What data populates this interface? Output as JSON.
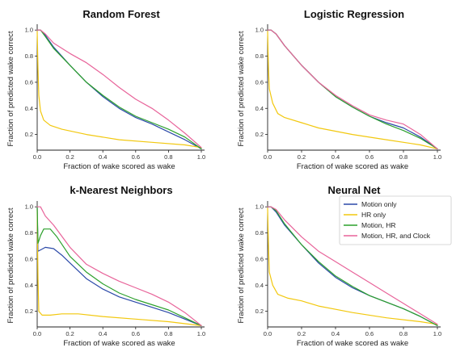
{
  "chart_data": [
    {
      "type": "line",
      "title": "Random Forest",
      "xlabel": "Fraction of wake scored as wake",
      "ylabel": "Fraction of predicted wake correct",
      "xlim": [
        0,
        1
      ],
      "ylim": [
        0.08,
        1.02
      ],
      "x_ticks": [
        "0.0",
        "0.2",
        "0.4",
        "0.6",
        "0.8",
        "1.0"
      ],
      "y_ticks": [
        "0.2",
        "0.4",
        "0.6",
        "0.8",
        "1.0"
      ],
      "grid": false,
      "series": [
        {
          "key": "motion",
          "points": [
            [
              0,
              1
            ],
            [
              0.02,
              1
            ],
            [
              0.05,
              0.96
            ],
            [
              0.1,
              0.87
            ],
            [
              0.2,
              0.73
            ],
            [
              0.3,
              0.6
            ],
            [
              0.4,
              0.49
            ],
            [
              0.5,
              0.4
            ],
            [
              0.6,
              0.33
            ],
            [
              0.7,
              0.28
            ],
            [
              0.8,
              0.22
            ],
            [
              0.9,
              0.16
            ],
            [
              1.0,
              0.09
            ]
          ]
        },
        {
          "key": "hr",
          "points": [
            [
              0,
              0.99
            ],
            [
              0.005,
              0.7
            ],
            [
              0.01,
              0.5
            ],
            [
              0.02,
              0.38
            ],
            [
              0.04,
              0.31
            ],
            [
              0.08,
              0.27
            ],
            [
              0.15,
              0.24
            ],
            [
              0.3,
              0.2
            ],
            [
              0.5,
              0.16
            ],
            [
              0.7,
              0.14
            ],
            [
              0.9,
              0.12
            ],
            [
              1.0,
              0.1
            ]
          ]
        },
        {
          "key": "motion_hr",
          "points": [
            [
              0,
              1
            ],
            [
              0.02,
              1
            ],
            [
              0.05,
              0.95
            ],
            [
              0.1,
              0.86
            ],
            [
              0.2,
              0.73
            ],
            [
              0.3,
              0.6
            ],
            [
              0.4,
              0.5
            ],
            [
              0.5,
              0.41
            ],
            [
              0.6,
              0.34
            ],
            [
              0.7,
              0.29
            ],
            [
              0.8,
              0.24
            ],
            [
              0.9,
              0.18
            ],
            [
              1.0,
              0.09
            ]
          ]
        },
        {
          "key": "clock",
          "points": [
            [
              0,
              1
            ],
            [
              0.02,
              1
            ],
            [
              0.05,
              0.97
            ],
            [
              0.1,
              0.9
            ],
            [
              0.2,
              0.82
            ],
            [
              0.3,
              0.75
            ],
            [
              0.4,
              0.66
            ],
            [
              0.5,
              0.56
            ],
            [
              0.6,
              0.47
            ],
            [
              0.7,
              0.4
            ],
            [
              0.8,
              0.31
            ],
            [
              0.9,
              0.21
            ],
            [
              1.0,
              0.1
            ]
          ]
        }
      ]
    },
    {
      "type": "line",
      "title": "Logistic Regression",
      "xlabel": "Fraction of wake scored as wake",
      "ylabel": "Fraction of predicted wake correct",
      "xlim": [
        0,
        1
      ],
      "ylim": [
        0.08,
        1.02
      ],
      "x_ticks": [
        "0.0",
        "0.2",
        "0.4",
        "0.6",
        "0.8",
        "1.0"
      ],
      "y_ticks": [
        "0.2",
        "0.4",
        "0.6",
        "0.8",
        "1.0"
      ],
      "grid": false,
      "series": [
        {
          "key": "motion",
          "points": [
            [
              0,
              1
            ],
            [
              0.02,
              1
            ],
            [
              0.05,
              0.97
            ],
            [
              0.1,
              0.88
            ],
            [
              0.2,
              0.73
            ],
            [
              0.3,
              0.6
            ],
            [
              0.4,
              0.49
            ],
            [
              0.5,
              0.41
            ],
            [
              0.6,
              0.34
            ],
            [
              0.7,
              0.29
            ],
            [
              0.8,
              0.25
            ],
            [
              0.9,
              0.18
            ],
            [
              1.0,
              0.09
            ]
          ]
        },
        {
          "key": "hr",
          "points": [
            [
              0,
              0.99
            ],
            [
              0.005,
              0.7
            ],
            [
              0.01,
              0.55
            ],
            [
              0.03,
              0.44
            ],
            [
              0.06,
              0.36
            ],
            [
              0.1,
              0.33
            ],
            [
              0.2,
              0.29
            ],
            [
              0.3,
              0.25
            ],
            [
              0.5,
              0.2
            ],
            [
              0.7,
              0.16
            ],
            [
              0.9,
              0.12
            ],
            [
              1.0,
              0.09
            ]
          ]
        },
        {
          "key": "motion_hr",
          "points": [
            [
              0,
              1
            ],
            [
              0.02,
              1
            ],
            [
              0.05,
              0.97
            ],
            [
              0.1,
              0.88
            ],
            [
              0.2,
              0.73
            ],
            [
              0.3,
              0.6
            ],
            [
              0.4,
              0.49
            ],
            [
              0.5,
              0.41
            ],
            [
              0.6,
              0.34
            ],
            [
              0.7,
              0.28
            ],
            [
              0.8,
              0.23
            ],
            [
              0.9,
              0.17
            ],
            [
              1.0,
              0.09
            ]
          ]
        },
        {
          "key": "clock",
          "points": [
            [
              0,
              1
            ],
            [
              0.02,
              1
            ],
            [
              0.05,
              0.97
            ],
            [
              0.1,
              0.88
            ],
            [
              0.2,
              0.73
            ],
            [
              0.3,
              0.6
            ],
            [
              0.4,
              0.5
            ],
            [
              0.5,
              0.42
            ],
            [
              0.6,
              0.35
            ],
            [
              0.7,
              0.31
            ],
            [
              0.8,
              0.28
            ],
            [
              0.9,
              0.2
            ],
            [
              1.0,
              0.09
            ]
          ]
        }
      ]
    },
    {
      "type": "line",
      "title": "k-Nearest Neighbors",
      "xlabel": "Fraction of wake scored as wake",
      "ylabel": "Fraction of predicted wake correct",
      "xlim": [
        0,
        1
      ],
      "ylim": [
        0.08,
        1.02
      ],
      "x_ticks": [
        "0.0",
        "0.2",
        "0.4",
        "0.6",
        "0.8",
        "1.0"
      ],
      "y_ticks": [
        "0.2",
        "0.4",
        "0.6",
        "0.8",
        "1.0"
      ],
      "grid": false,
      "series": [
        {
          "key": "motion",
          "points": [
            [
              0,
              1
            ],
            [
              0.005,
              0.66
            ],
            [
              0.02,
              0.67
            ],
            [
              0.05,
              0.69
            ],
            [
              0.1,
              0.68
            ],
            [
              0.15,
              0.63
            ],
            [
              0.2,
              0.57
            ],
            [
              0.3,
              0.45
            ],
            [
              0.4,
              0.37
            ],
            [
              0.5,
              0.31
            ],
            [
              0.6,
              0.27
            ],
            [
              0.7,
              0.23
            ],
            [
              0.8,
              0.19
            ],
            [
              0.9,
              0.14
            ],
            [
              1.0,
              0.09
            ]
          ]
        },
        {
          "key": "hr",
          "points": [
            [
              0,
              0.98
            ],
            [
              0.005,
              0.45
            ],
            [
              0.01,
              0.2
            ],
            [
              0.03,
              0.17
            ],
            [
              0.08,
              0.17
            ],
            [
              0.15,
              0.18
            ],
            [
              0.25,
              0.18
            ],
            [
              0.4,
              0.16
            ],
            [
              0.6,
              0.14
            ],
            [
              0.8,
              0.12
            ],
            [
              1.0,
              0.09
            ]
          ]
        },
        {
          "key": "motion_hr",
          "points": [
            [
              0,
              1
            ],
            [
              0.005,
              0.72
            ],
            [
              0.02,
              0.78
            ],
            [
              0.04,
              0.83
            ],
            [
              0.08,
              0.83
            ],
            [
              0.12,
              0.77
            ],
            [
              0.2,
              0.62
            ],
            [
              0.3,
              0.5
            ],
            [
              0.4,
              0.41
            ],
            [
              0.5,
              0.34
            ],
            [
              0.6,
              0.29
            ],
            [
              0.7,
              0.25
            ],
            [
              0.8,
              0.21
            ],
            [
              0.9,
              0.15
            ],
            [
              1.0,
              0.09
            ]
          ]
        },
        {
          "key": "clock",
          "points": [
            [
              0,
              1
            ],
            [
              0.02,
              1
            ],
            [
              0.05,
              0.93
            ],
            [
              0.1,
              0.86
            ],
            [
              0.2,
              0.69
            ],
            [
              0.3,
              0.56
            ],
            [
              0.4,
              0.49
            ],
            [
              0.5,
              0.43
            ],
            [
              0.6,
              0.38
            ],
            [
              0.7,
              0.33
            ],
            [
              0.8,
              0.27
            ],
            [
              0.9,
              0.19
            ],
            [
              1.0,
              0.09
            ]
          ]
        }
      ]
    },
    {
      "type": "line",
      "title": "Neural Net",
      "xlabel": "Fraction of wake scored as wake",
      "ylabel": "Fraction of predicted wake correct",
      "xlim": [
        0,
        1
      ],
      "ylim": [
        0.08,
        1.02
      ],
      "x_ticks": [
        "0.0",
        "0.2",
        "0.4",
        "0.6",
        "0.8",
        "1.0"
      ],
      "y_ticks": [
        "0.2",
        "0.4",
        "0.6",
        "0.8",
        "1.0"
      ],
      "grid": false,
      "legend": {
        "placement": "top-right",
        "entries": [
          {
            "key": "motion",
            "label": "Motion only"
          },
          {
            "key": "hr",
            "label": "HR only"
          },
          {
            "key": "motion_hr",
            "label": "Motion, HR"
          },
          {
            "key": "clock",
            "label": "Motion, HR, and Clock"
          }
        ]
      },
      "series": [
        {
          "key": "motion",
          "points": [
            [
              0,
              1
            ],
            [
              0.02,
              1
            ],
            [
              0.05,
              0.96
            ],
            [
              0.1,
              0.86
            ],
            [
              0.2,
              0.71
            ],
            [
              0.3,
              0.57
            ],
            [
              0.4,
              0.46
            ],
            [
              0.5,
              0.38
            ],
            [
              0.6,
              0.32
            ],
            [
              0.7,
              0.27
            ],
            [
              0.8,
              0.22
            ],
            [
              0.9,
              0.16
            ],
            [
              1.0,
              0.09
            ]
          ]
        },
        {
          "key": "hr",
          "points": [
            [
              0,
              0.99
            ],
            [
              0.005,
              0.7
            ],
            [
              0.01,
              0.5
            ],
            [
              0.03,
              0.4
            ],
            [
              0.06,
              0.33
            ],
            [
              0.12,
              0.3
            ],
            [
              0.2,
              0.28
            ],
            [
              0.3,
              0.24
            ],
            [
              0.5,
              0.19
            ],
            [
              0.7,
              0.15
            ],
            [
              0.9,
              0.12
            ],
            [
              1.0,
              0.1
            ]
          ]
        },
        {
          "key": "motion_hr",
          "points": [
            [
              0,
              1
            ],
            [
              0.02,
              1
            ],
            [
              0.05,
              0.97
            ],
            [
              0.1,
              0.87
            ],
            [
              0.2,
              0.71
            ],
            [
              0.3,
              0.58
            ],
            [
              0.4,
              0.47
            ],
            [
              0.5,
              0.39
            ],
            [
              0.6,
              0.32
            ],
            [
              0.7,
              0.27
            ],
            [
              0.8,
              0.22
            ],
            [
              0.9,
              0.16
            ],
            [
              1.0,
              0.09
            ]
          ]
        },
        {
          "key": "clock",
          "points": [
            [
              0,
              1
            ],
            [
              0.02,
              1
            ],
            [
              0.05,
              0.98
            ],
            [
              0.1,
              0.9
            ],
            [
              0.2,
              0.77
            ],
            [
              0.3,
              0.66
            ],
            [
              0.4,
              0.58
            ],
            [
              0.5,
              0.5
            ],
            [
              0.6,
              0.42
            ],
            [
              0.7,
              0.34
            ],
            [
              0.8,
              0.26
            ],
            [
              0.9,
              0.18
            ],
            [
              1.0,
              0.1
            ]
          ]
        }
      ]
    }
  ],
  "series_colors": {
    "motion": "#2b49a8",
    "hr": "#f2c80f",
    "motion_hr": "#2ca02c",
    "clock": "#e8649a"
  }
}
